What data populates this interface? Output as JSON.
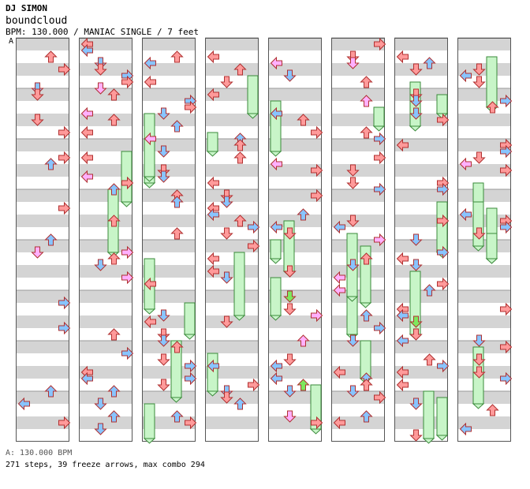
{
  "header": {
    "artist": "DJ SIMON",
    "title": "boundcloud",
    "info": "BPM: 130.000 / MANIAC SINGLE / 7 feet",
    "section_label": "A"
  },
  "footer": {
    "bpm_label": "A: 130.000 BPM",
    "stats": "271 steps, 39 freeze arrows, max combo 294"
  },
  "chart_data": {
    "type": "step-chart",
    "lanes": [
      "left",
      "down",
      "up",
      "right"
    ],
    "colors": {
      "quarter": "#ff9a9a",
      "eighth": "#88c4ff",
      "sixteenth": "#ffb0ff",
      "twelfth": "#7de85e",
      "freeze": "#c8f5c8",
      "stripe": "#d4d4d4"
    },
    "columns": 8,
    "measures_per_column": 8,
    "total_measures": 64,
    "steps": 271,
    "freeze_arrows": 39,
    "max_combo": 294
  }
}
